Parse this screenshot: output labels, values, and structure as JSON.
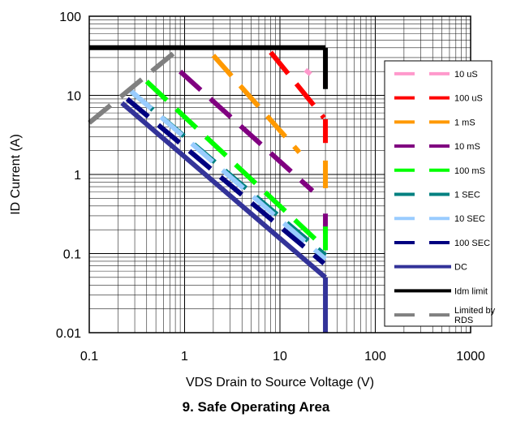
{
  "chart_data": {
    "type": "line",
    "title": "",
    "xlabel": "VDS Drain to Source Voltage (V)",
    "ylabel": "ID Current (A)",
    "x_scale": "log",
    "y_scale": "log",
    "xlim": [
      0.1,
      1000
    ],
    "ylim": [
      0.01,
      100
    ],
    "x_ticks": [
      "0.1",
      "1",
      "10",
      "100",
      "1000"
    ],
    "y_ticks": [
      "0.01",
      "0.1",
      "1",
      "10",
      "100"
    ],
    "grid": true,
    "legend_position": "right",
    "series": [
      {
        "name": "10 uS",
        "color": "#ff99cc",
        "dashed": true,
        "segments": [
          [
            [
              18.5,
              21
            ],
            [
              21,
              18.5
            ]
          ],
          [
            [
              30,
              16
            ],
            [
              30,
              13
            ]
          ]
        ]
      },
      {
        "name": "100 uS",
        "color": "#ff0000",
        "dashed": true,
        "segments": [
          [
            [
              8.0,
              35
            ],
            [
              29,
              5.2
            ]
          ],
          [
            [
              30,
              5.0
            ],
            [
              30,
              2.5
            ]
          ]
        ]
      },
      {
        "name": "1 mS",
        "color": "#ff9900",
        "dashed": true,
        "segments": [
          [
            [
              2.0,
              32
            ],
            [
              16,
              1.9
            ]
          ],
          [
            [
              30,
              1.5
            ],
            [
              30,
              0.5
            ]
          ]
        ]
      },
      {
        "name": "10 mS",
        "color": "#800080",
        "dashed": true,
        "segments": [
          [
            [
              0.9,
              20
            ],
            [
              22,
              0.62
            ]
          ],
          [
            [
              30,
              0.32
            ],
            [
              30,
              0.18
            ]
          ]
        ]
      },
      {
        "name": "100 mS",
        "color": "#00ff00",
        "dashed": true,
        "segments": [
          [
            [
              0.4,
              15
            ],
            [
              29,
              0.12
            ]
          ],
          [
            [
              30,
              0.22
            ],
            [
              30,
              0.11
            ]
          ]
        ]
      },
      {
        "name": "1 SEC",
        "color": "#008080",
        "dashed": true,
        "segments": [
          [
            [
              0.28,
              11
            ],
            [
              30,
              0.095
            ]
          ]
        ]
      },
      {
        "name": "10 SEC",
        "color": "#99ccff",
        "dashed": true,
        "segments": [
          [
            [
              0.27,
              11.5
            ],
            [
              30,
              0.085
            ]
          ]
        ]
      },
      {
        "name": "100 SEC",
        "color": "#000080",
        "dashed": true,
        "segments": [
          [
            [
              0.25,
              9.0
            ],
            [
              29,
              0.075
            ]
          ]
        ]
      },
      {
        "name": "DC",
        "color": "#333399",
        "dashed": false,
        "segments": [
          [
            [
              0.22,
              8.0
            ],
            [
              30,
              0.05
            ]
          ],
          [
            [
              30,
              0.05
            ],
            [
              30,
              0.01
            ]
          ]
        ]
      },
      {
        "name": "Idm limit",
        "color": "#000000",
        "dashed": false,
        "segments": [
          [
            [
              0.1,
              40
            ],
            [
              30,
              40
            ]
          ],
          [
            [
              30,
              40
            ],
            [
              30,
              12
            ]
          ]
        ]
      },
      {
        "name": "Limited by RDS",
        "color": "#808080",
        "dashed": true,
        "segments": [
          [
            [
              0.1,
              4.5
            ],
            [
              0.9,
              40
            ]
          ]
        ]
      }
    ],
    "legend": [
      {
        "label": "10 uS",
        "color": "#ff99cc",
        "dashed": true
      },
      {
        "label": "100 uS",
        "color": "#ff0000",
        "dashed": true
      },
      {
        "label": "1 mS",
        "color": "#ff9900",
        "dashed": true
      },
      {
        "label": "10 mS",
        "color": "#800080",
        "dashed": true
      },
      {
        "label": "100 mS",
        "color": "#00ff00",
        "dashed": true
      },
      {
        "label": "1 SEC",
        "color": "#008080",
        "dashed": true
      },
      {
        "label": "10 SEC",
        "color": "#99ccff",
        "dashed": true
      },
      {
        "label": "100 SEC",
        "color": "#000080",
        "dashed": true
      },
      {
        "label": "DC",
        "color": "#333399",
        "dashed": false
      },
      {
        "label": "Idm limit",
        "color": "#000000",
        "dashed": false
      },
      {
        "label": "Limited by RDS",
        "color": "#808080",
        "dashed": true
      }
    ]
  },
  "caption": "9. Safe Operating Area"
}
